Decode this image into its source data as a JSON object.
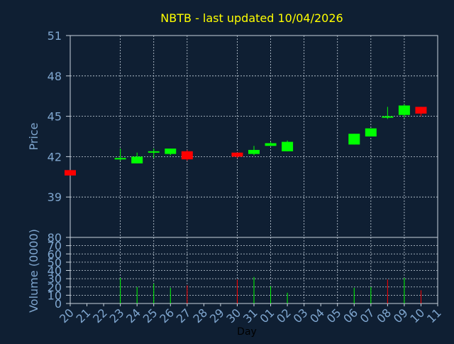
{
  "chart_data": [
    {
      "type": "candlestick",
      "title": "NBTB - last updated 10/04/2026",
      "ylabel": "Price",
      "ylim": [
        36,
        51
      ],
      "yticks": [
        39,
        42,
        45,
        48,
        51
      ],
      "grid": true,
      "colors": {
        "up": "#00ff00",
        "down": "#ff0000",
        "title": "#ffff00",
        "axis_text": "#7fa6cf",
        "grid": "#c8d3de",
        "background": "#0f1f33"
      },
      "ohlc": [
        {
          "day": "20",
          "open": 41.0,
          "high": 41.0,
          "low": 40.6,
          "close": 40.6
        },
        {
          "day": "23",
          "open": 41.8,
          "high": 42.6,
          "low": 41.7,
          "close": 41.9
        },
        {
          "day": "24",
          "open": 41.5,
          "high": 42.3,
          "low": 41.5,
          "close": 42.0
        },
        {
          "day": "25",
          "open": 42.3,
          "high": 42.6,
          "low": 41.9,
          "close": 42.4
        },
        {
          "day": "26",
          "open": 42.2,
          "high": 42.6,
          "low": 42.1,
          "close": 42.6
        },
        {
          "day": "27",
          "open": 42.4,
          "high": 42.5,
          "low": 41.7,
          "close": 41.8
        },
        {
          "day": "30",
          "open": 42.3,
          "high": 42.3,
          "low": 41.9,
          "close": 42.0
        },
        {
          "day": "31",
          "open": 42.2,
          "high": 42.8,
          "low": 42.1,
          "close": 42.5
        },
        {
          "day": "01",
          "open": 42.8,
          "high": 43.1,
          "low": 42.8,
          "close": 43.0
        },
        {
          "day": "02",
          "open": 42.4,
          "high": 43.2,
          "low": 42.4,
          "close": 43.1
        },
        {
          "day": "06",
          "open": 42.9,
          "high": 43.7,
          "low": 42.9,
          "close": 43.7
        },
        {
          "day": "07",
          "open": 43.5,
          "high": 44.1,
          "low": 43.5,
          "close": 44.1
        },
        {
          "day": "08",
          "open": 45.0,
          "high": 45.7,
          "low": 44.8,
          "close": 45.0
        },
        {
          "day": "09",
          "open": 45.1,
          "high": 45.9,
          "low": 44.9,
          "close": 45.8
        },
        {
          "day": "10",
          "open": 45.7,
          "high": 45.7,
          "low": 45.0,
          "close": 45.2
        }
      ]
    },
    {
      "type": "bar",
      "ylabel": "Volume (0000)",
      "xlabel": "Day",
      "ylim": [
        0,
        80
      ],
      "yticks": [
        0,
        10,
        20,
        30,
        40,
        50,
        60,
        70,
        80
      ],
      "grid": true,
      "categories": [
        "20",
        "21",
        "22",
        "23",
        "24",
        "25",
        "26",
        "27",
        "28",
        "29",
        "30",
        "31",
        "01",
        "02",
        "03",
        "04",
        "05",
        "06",
        "07",
        "08",
        "09",
        "10",
        "11"
      ],
      "volume": [
        {
          "day": "23",
          "value": 31,
          "direction": "up"
        },
        {
          "day": "24",
          "value": 20,
          "direction": "up"
        },
        {
          "day": "25",
          "value": 24,
          "direction": "up"
        },
        {
          "day": "26",
          "value": 19,
          "direction": "up"
        },
        {
          "day": "27",
          "value": 22,
          "direction": "down"
        },
        {
          "day": "30",
          "value": 29,
          "direction": "down"
        },
        {
          "day": "31",
          "value": 32,
          "direction": "up"
        },
        {
          "day": "01",
          "value": 21,
          "direction": "up"
        },
        {
          "day": "02",
          "value": 13,
          "direction": "up"
        },
        {
          "day": "06",
          "value": 19,
          "direction": "up"
        },
        {
          "day": "07",
          "value": 20,
          "direction": "up"
        },
        {
          "day": "08",
          "value": 29,
          "direction": "down"
        },
        {
          "day": "09",
          "value": 31,
          "direction": "up"
        },
        {
          "day": "10",
          "value": 16,
          "direction": "down"
        }
      ]
    }
  ]
}
